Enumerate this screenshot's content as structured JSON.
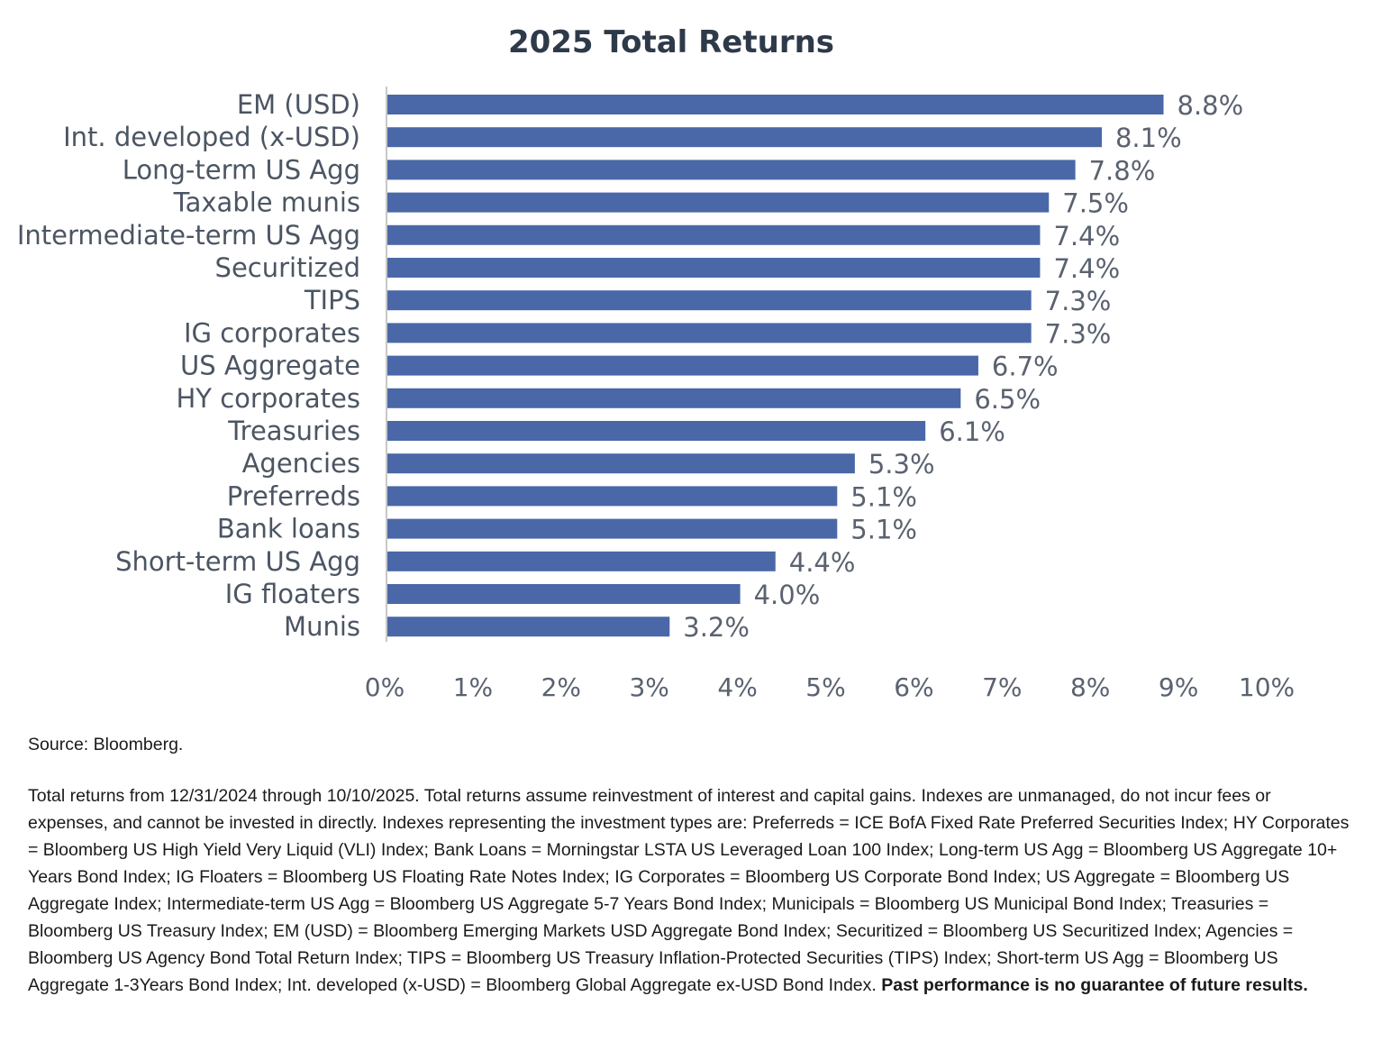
{
  "chart_data": {
    "type": "bar",
    "orientation": "horizontal",
    "title": "2025 Total Returns",
    "xlabel": "",
    "ylabel": "",
    "categories": [
      "EM (USD)",
      "Int. developed (x-USD)",
      "Long-term US Agg",
      "Taxable munis",
      "Intermediate-term US Agg",
      "Securitized",
      "TIPS",
      "IG corporates",
      "US Aggregate",
      "HY corporates",
      "Treasuries",
      "Agencies",
      "Preferreds",
      "Bank loans",
      "Short-term US Agg",
      "IG floaters",
      "Munis"
    ],
    "values": [
      8.8,
      8.1,
      7.8,
      7.5,
      7.4,
      7.4,
      7.3,
      7.3,
      6.7,
      6.5,
      6.1,
      5.3,
      5.1,
      5.1,
      4.4,
      4.0,
      3.2
    ],
    "value_labels": [
      "8.8%",
      "8.1%",
      "7.8%",
      "7.5%",
      "7.4%",
      "7.4%",
      "7.3%",
      "7.3%",
      "6.7%",
      "6.5%",
      "6.1%",
      "5.3%",
      "5.1%",
      "5.1%",
      "4.4%",
      "4.0%",
      "3.2%"
    ],
    "xlim": [
      0,
      10
    ],
    "x_ticks": [
      "0%",
      "1%",
      "2%",
      "3%",
      "4%",
      "5%",
      "6%",
      "7%",
      "8%",
      "9%",
      "10%"
    ],
    "grid": false,
    "legend": "none",
    "bar_color": "#4a68a8"
  },
  "footer": {
    "source": "Source: Bloomberg.",
    "notes": "Total returns from 12/31/2024 through 10/10/2025. Total returns assume reinvestment of interest and capital gains. Indexes are unmanaged, do not incur fees or expenses, and cannot be invested in directly. Indexes representing the investment types are: Preferreds = ICE BofA Fixed Rate Preferred Securities Index; HY Corporates = Bloomberg US High Yield Very Liquid (VLI) Index; Bank Loans = Morningstar LSTA US Leveraged Loan 100 Index; Long-term US Agg = Bloomberg US Aggregate 10+ Years Bond Index; IG Floaters = Bloomberg US Floating Rate Notes Index; IG Corporates = Bloomberg US Corporate Bond Index; US Aggregate = Bloomberg US Aggregate Index; Intermediate-term US Agg = Bloomberg US Aggregate 5-7 Years Bond Index; Municipals = Bloomberg US Municipal Bond Index; Treasuries = Bloomberg US Treasury Index; EM (USD) = Bloomberg Emerging Markets USD Aggregate Bond Index; Securitized = Bloomberg US Securitized Index; Agencies = Bloomberg US Agency Bond Total Return Index; TIPS = Bloomberg US Treasury Inflation-Protected Securities (TIPS) Index; Short-term US Agg = Bloomberg US Aggregate 1-3Years Bond Index; Int. developed (x-USD) = Bloomberg Global Aggregate ex-USD Bond Index.",
    "disclaimer": "Past performance is no guarantee of future results."
  }
}
